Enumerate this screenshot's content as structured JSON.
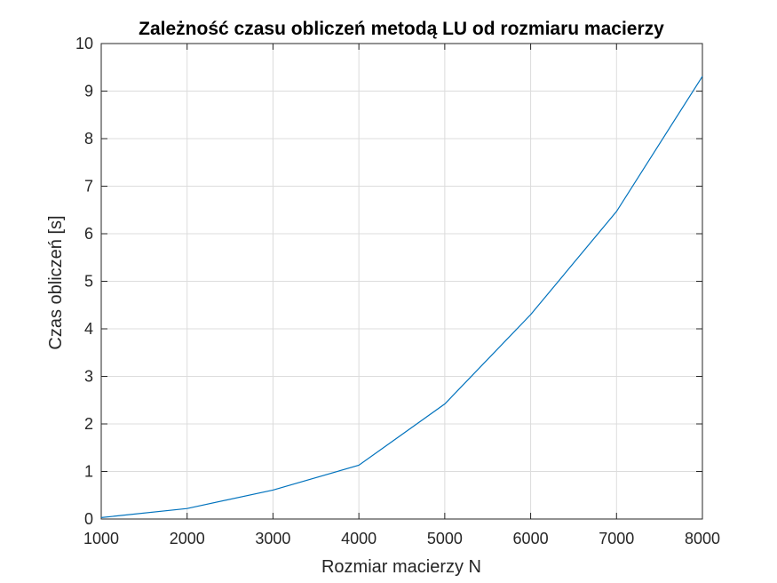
{
  "chart_data": {
    "type": "line",
    "title": "Zależność czasu obliczeń metodą LU od rozmiaru macierzy",
    "xlabel": "Rozmiar macierzy N",
    "ylabel": "Czas obliczeń [s]",
    "xlim": [
      1000,
      8000
    ],
    "ylim": [
      0,
      10
    ],
    "xticks": [
      1000,
      2000,
      3000,
      4000,
      5000,
      6000,
      7000,
      8000
    ],
    "yticks": [
      0,
      1,
      2,
      3,
      4,
      5,
      6,
      7,
      8,
      9,
      10
    ],
    "xtick_labels": [
      "1000",
      "2000",
      "3000",
      "4000",
      "5000",
      "6000",
      "7000",
      "8000"
    ],
    "ytick_labels": [
      "0",
      "1",
      "2",
      "3",
      "4",
      "5",
      "6",
      "7",
      "8",
      "9",
      "10"
    ],
    "grid": true,
    "line_color": "#0072BD",
    "series": [
      {
        "x": [
          1000,
          2000,
          3000,
          4000,
          5000,
          6000,
          7000,
          8000
        ],
        "values": [
          0.03,
          0.22,
          0.61,
          1.13,
          2.42,
          4.3,
          6.47,
          9.31
        ]
      }
    ]
  }
}
